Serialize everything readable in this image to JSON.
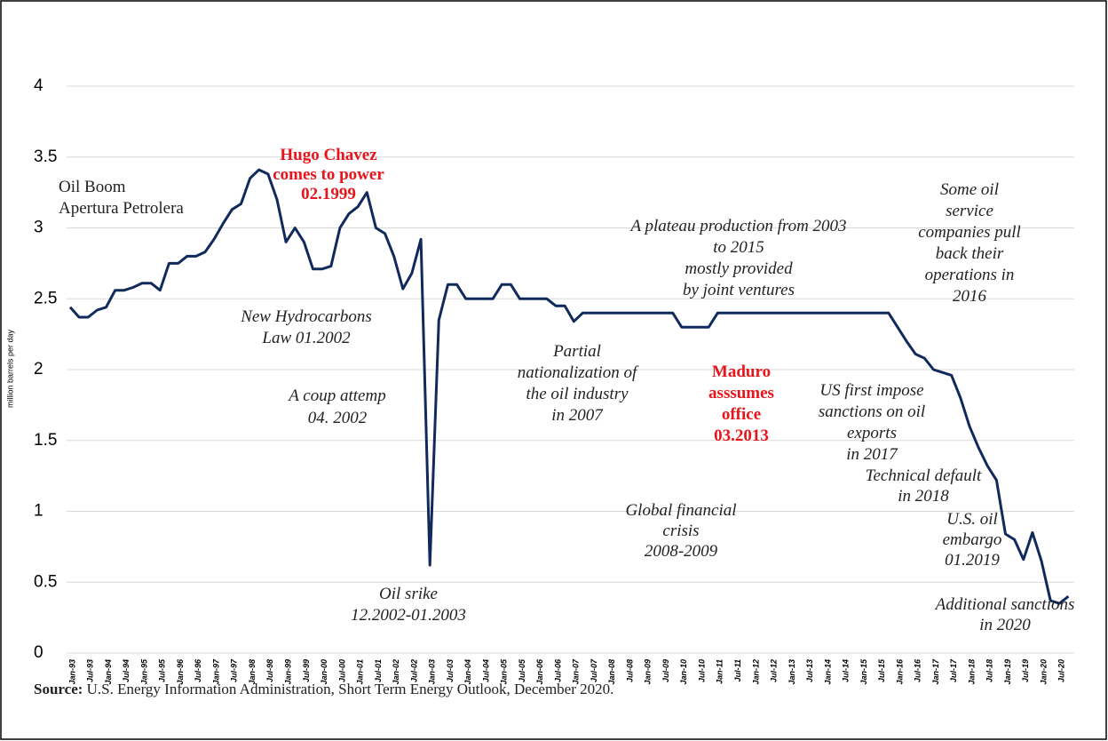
{
  "chart_data": {
    "type": "line",
    "y_label": "million barrels per day",
    "ylim": [
      0,
      4
    ],
    "yticks": [
      0,
      0.5,
      1,
      1.5,
      2,
      2.5,
      3,
      3.5,
      4
    ],
    "grid": true,
    "color": "#102a5c",
    "categories": [
      "Jan-93",
      null,
      "Jul-93",
      null,
      "Jan-94",
      null,
      "Jul-94",
      null,
      "Jan-95",
      null,
      "Jul-95",
      null,
      "Jan-96",
      null,
      "Jul-96",
      null,
      "Jan-97",
      null,
      "Jul-97",
      null,
      "Jan-98",
      null,
      "Jul-98",
      null,
      "Jan-99",
      null,
      "Jul-99",
      null,
      "Jan-00",
      null,
      "Jul-00",
      null,
      "Jan-01",
      null,
      "Jul-01",
      null,
      "Jan-02",
      null,
      "Jul-02",
      null,
      "Jan-03",
      null,
      "Jul-03",
      null,
      "Jan-04",
      null,
      "Jul-04",
      null,
      "Jan-05",
      null,
      "Jul-05",
      null,
      "Jan-06",
      null,
      "Jul-06",
      null,
      "Jan-07",
      null,
      "Jul-07",
      null,
      "Jan-08",
      null,
      "Jul-08",
      null,
      "Jan-09",
      null,
      "Jul-09",
      null,
      "Jan-10",
      null,
      "Jul-10",
      null,
      "Jan-11",
      null,
      "Jul-11",
      null,
      "Jan-12",
      null,
      "Jul-12",
      null,
      "Jan-13",
      null,
      "Jul-13",
      null,
      "Jan-14",
      null,
      "Jul-14",
      null,
      "Jan-15",
      null,
      "Jul-15",
      null,
      "Jan-16",
      null,
      "Jul-16",
      null,
      "Jan-17",
      null,
      "Jul-17",
      null,
      "Jan-18",
      null,
      "Jul-18",
      null,
      "Jan-19",
      null,
      "Jul-19",
      null,
      "Jan-20",
      null,
      "Jul-20",
      null
    ],
    "values": [
      2.44,
      2.37,
      2.37,
      2.42,
      2.44,
      2.56,
      2.56,
      2.58,
      2.61,
      2.61,
      2.56,
      2.75,
      2.75,
      2.8,
      2.8,
      2.83,
      2.92,
      3.03,
      3.13,
      3.17,
      3.35,
      3.41,
      3.38,
      3.2,
      2.9,
      3.0,
      2.9,
      2.71,
      2.71,
      2.73,
      3.0,
      3.1,
      3.15,
      3.25,
      3.0,
      2.96,
      2.8,
      2.57,
      2.68,
      2.92,
      0.62,
      2.35,
      2.6,
      2.6,
      2.5,
      2.5,
      2.5,
      2.5,
      2.6,
      2.6,
      2.5,
      2.5,
      2.5,
      2.5,
      2.45,
      2.45,
      2.34,
      2.4,
      2.4,
      2.4,
      2.4,
      2.4,
      2.4,
      2.4,
      2.4,
      2.4,
      2.4,
      2.4,
      2.3,
      2.3,
      2.3,
      2.3,
      2.4,
      2.4,
      2.4,
      2.4,
      2.4,
      2.4,
      2.4,
      2.4,
      2.4,
      2.4,
      2.4,
      2.4,
      2.4,
      2.4,
      2.4,
      2.4,
      2.4,
      2.4,
      2.4,
      2.4,
      2.3,
      2.2,
      2.11,
      2.08,
      2.0,
      1.98,
      1.96,
      1.8,
      1.6,
      1.45,
      1.32,
      1.22,
      0.84,
      0.8,
      0.66,
      0.85,
      0.65,
      0.37,
      0.35,
      0.4
    ],
    "annotations": [
      {
        "lines": [
          "Oil Boom",
          "Apertura Petrolera"
        ]
      },
      {
        "lines": [
          "Hugo Chavez",
          "comes to power",
          "02.1999"
        ]
      },
      {
        "lines": [
          "New Hydrocarbons",
          "Law 01.2002"
        ]
      },
      {
        "lines": [
          "A coup attemp",
          "04. 2002"
        ]
      },
      {
        "lines": [
          "Oil srike",
          "12.2002-01.2003"
        ]
      },
      {
        "lines": [
          "Partial",
          "nationalization of",
          "the oil industry",
          "in 2007"
        ]
      },
      {
        "lines": [
          "A plateau production from 2003",
          "to 2015",
          "mostly provided",
          "by joint ventures"
        ]
      },
      {
        "lines": [
          "Maduro",
          "asssumes",
          "office",
          "03.2013"
        ]
      },
      {
        "lines": [
          "Global financial",
          "crisis",
          "2008-2009"
        ]
      },
      {
        "lines": [
          "Some oil",
          "service",
          "companies pull",
          "back their",
          "operations  in",
          "2016"
        ]
      },
      {
        "lines": [
          "US first impose",
          "sanctions on oil",
          "exports",
          "in 2017"
        ]
      },
      {
        "lines": [
          "Technical default",
          "in 2018"
        ]
      },
      {
        "lines": [
          "U.S. oil",
          "embargo",
          "01.2019"
        ]
      },
      {
        "lines": [
          "Additional sanctions",
          "in 2020"
        ]
      }
    ]
  },
  "source": {
    "label": "Source:",
    "text": "U.S. Energy Information Administration, Short Term Energy Outlook, December 2020."
  }
}
